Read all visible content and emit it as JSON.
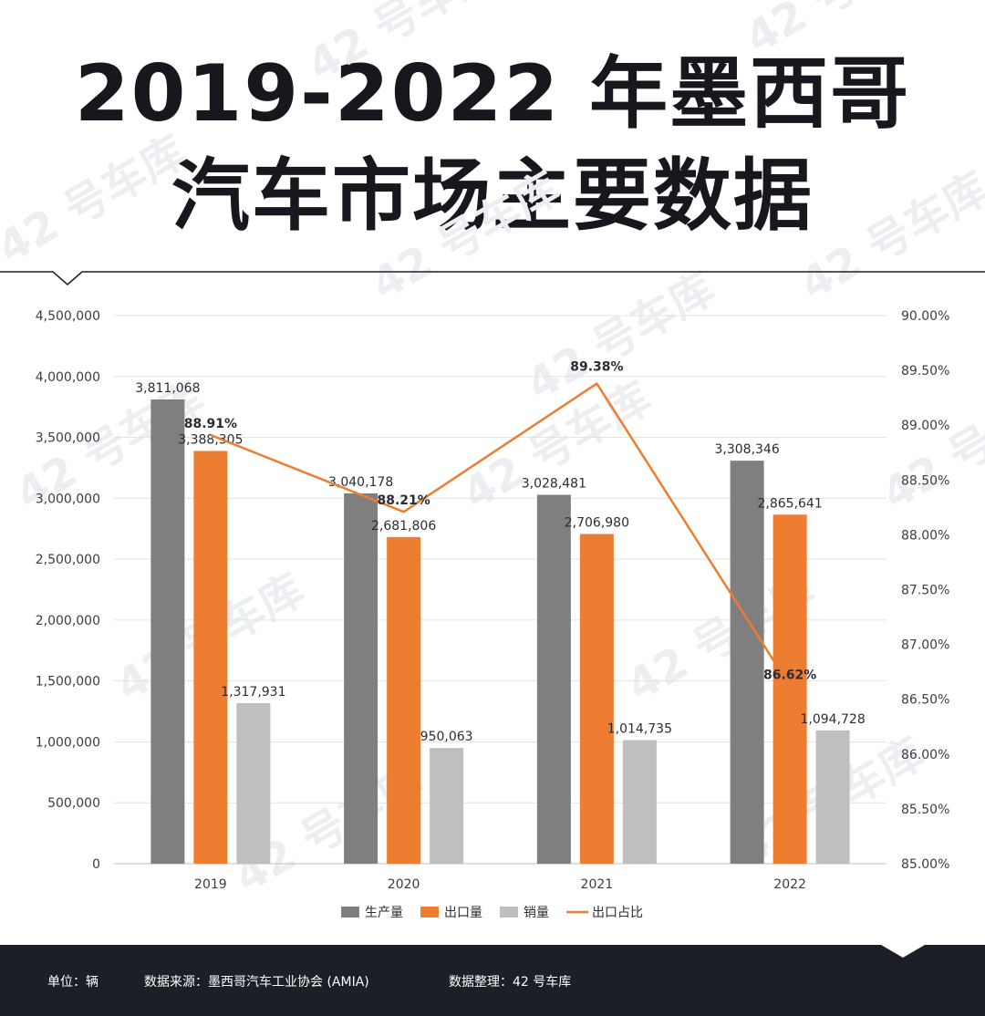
{
  "header": {
    "title_line1": "2019-2022 年墨西哥",
    "title_line2": "汽车市场主要数据"
  },
  "watermark_text": "42 号车库",
  "chart_data": {
    "type": "bar",
    "categories": [
      "2019",
      "2020",
      "2021",
      "2022"
    ],
    "series": [
      {
        "name": "生产量",
        "values": [
          3811068,
          3040178,
          3028481,
          3308346
        ],
        "color": "#7f7f7f",
        "labels": [
          "3,811,068",
          "3,040,178",
          "3,028,481",
          "3,308,346"
        ]
      },
      {
        "name": "出口量",
        "values": [
          3388305,
          2681806,
          2706980,
          2865641
        ],
        "color": "#ed7d31",
        "labels": [
          "3,388,305",
          "2,681,806",
          "2,706,980",
          "2,865,641"
        ]
      },
      {
        "name": "销量",
        "values": [
          1317931,
          950063,
          1014735,
          1094728
        ],
        "color": "#bfbfbf",
        "labels": [
          "1,317,931",
          "950,063",
          "1,014,735",
          "1,094,728"
        ]
      }
    ],
    "line_series": {
      "name": "出口占比",
      "values": [
        88.91,
        88.21,
        89.38,
        86.62
      ],
      "color": "#ed7d31",
      "labels": [
        "88.91%",
        "88.21%",
        "89.38%",
        "86.62%"
      ]
    },
    "ylim": [
      0,
      4500000
    ],
    "y2lim": [
      85.0,
      90.0
    ],
    "yticks": [
      "0",
      "500,000",
      "1,000,000",
      "1,500,000",
      "2,000,000",
      "2,500,000",
      "3,000,000",
      "3,500,000",
      "4,000,000",
      "4,500,000"
    ],
    "y2ticks": [
      "85.00%",
      "85.50%",
      "86.00%",
      "86.50%",
      "87.00%",
      "87.50%",
      "88.00%",
      "88.50%",
      "89.00%",
      "89.50%",
      "90.00%"
    ],
    "legend": [
      "生产量",
      "出口量",
      "销量",
      "出口占比"
    ],
    "legend_position": "bottom",
    "grid": true
  },
  "footer": {
    "unit": "单位：辆",
    "source": "数据来源：墨西哥汽车工业协会 (AMIA)",
    "compiled": "数据整理：42 号车库"
  }
}
